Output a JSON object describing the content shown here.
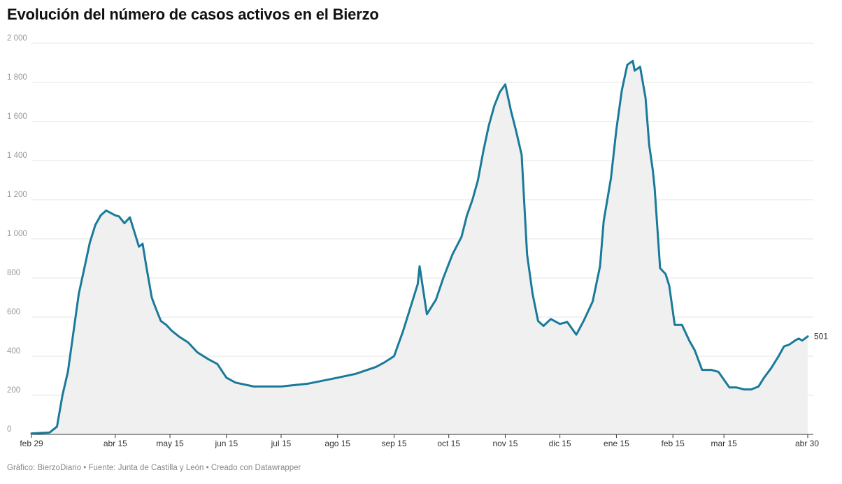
{
  "title": "Evolución del número de casos activos en el Bierzo",
  "footer": {
    "credit": "Gráfico: BierzoDiario",
    "sep1": " • ",
    "source": "Fuente: Junta de Castilla y León",
    "sep2": " • ",
    "tool": "Creado con Datawrapper"
  },
  "colors": {
    "line": "#1a7a99",
    "area": "#f0f0f0",
    "grid": "#e5e5e5",
    "baseline": "#333333"
  },
  "chart_data": {
    "type": "area",
    "title": "Evolución del número de casos activos en el Bierzo",
    "xlabel": "",
    "ylabel": "",
    "ylim": [
      0,
      2000
    ],
    "yticks": [
      0,
      200,
      400,
      600,
      800,
      1000,
      1200,
      1400,
      1600,
      1800,
      2000
    ],
    "ytick_labels": [
      "0",
      "200",
      "400",
      "600",
      "800",
      "1 000",
      "1 200",
      "1 400",
      "1 600",
      "1 800",
      "2 000"
    ],
    "xlim": [
      "2020-02-29",
      "2021-04-30"
    ],
    "xticks": [
      {
        "date": "2020-02-29",
        "label": "feb 29"
      },
      {
        "date": "2020-04-15",
        "label": "abr 15"
      },
      {
        "date": "2020-05-15",
        "label": "may 15"
      },
      {
        "date": "2020-06-15",
        "label": "jun 15"
      },
      {
        "date": "2020-07-15",
        "label": "jul 15"
      },
      {
        "date": "2020-08-15",
        "label": "ago 15"
      },
      {
        "date": "2020-09-15",
        "label": "sep 15"
      },
      {
        "date": "2020-10-15",
        "label": "oct 15"
      },
      {
        "date": "2020-11-15",
        "label": "nov 15"
      },
      {
        "date": "2020-12-15",
        "label": "dic 15"
      },
      {
        "date": "2021-01-15",
        "label": "ene 15"
      },
      {
        "date": "2021-02-15",
        "label": "feb 15"
      },
      {
        "date": "2021-03-15",
        "label": "mar 15"
      },
      {
        "date": "2021-04-30",
        "label": "abr 30"
      }
    ],
    "grid": true,
    "end_label": "501",
    "x": [
      "2020-02-29",
      "2020-03-10",
      "2020-03-14",
      "2020-03-17",
      "2020-03-20",
      "2020-03-23",
      "2020-03-26",
      "2020-03-29",
      "2020-04-01",
      "2020-04-04",
      "2020-04-07",
      "2020-04-10",
      "2020-04-13",
      "2020-04-15",
      "2020-04-17",
      "2020-04-20",
      "2020-04-23",
      "2020-04-26",
      "2020-04-28",
      "2020-04-30",
      "2020-05-02",
      "2020-05-05",
      "2020-05-07",
      "2020-05-10",
      "2020-05-13",
      "2020-05-16",
      "2020-05-20",
      "2020-05-25",
      "2020-05-30",
      "2020-06-05",
      "2020-06-10",
      "2020-06-15",
      "2020-06-20",
      "2020-06-30",
      "2020-07-15",
      "2020-07-30",
      "2020-08-15",
      "2020-08-25",
      "2020-09-05",
      "2020-09-10",
      "2020-09-15",
      "2020-09-20",
      "2020-09-25",
      "2020-09-28",
      "2020-09-29",
      "2020-10-03",
      "2020-10-08",
      "2020-10-12",
      "2020-10-17",
      "2020-10-22",
      "2020-10-25",
      "2020-10-28",
      "2020-10-31",
      "2020-11-03",
      "2020-11-06",
      "2020-11-09",
      "2020-11-12",
      "2020-11-15",
      "2020-11-18",
      "2020-11-21",
      "2020-11-24",
      "2020-11-27",
      "2020-11-30",
      "2020-12-03",
      "2020-12-06",
      "2020-12-10",
      "2020-12-15",
      "2020-12-19",
      "2020-12-24",
      "2020-12-28",
      "2021-01-02",
      "2021-01-06",
      "2021-01-08",
      "2021-01-12",
      "2021-01-15",
      "2021-01-18",
      "2021-01-21",
      "2021-01-24",
      "2021-01-25",
      "2021-01-28",
      "2021-01-31",
      "2021-02-02",
      "2021-02-04",
      "2021-02-05",
      "2021-02-08",
      "2021-02-11",
      "2021-02-13",
      "2021-02-16",
      "2021-02-20",
      "2021-02-24",
      "2021-02-27",
      "2021-03-03",
      "2021-03-08",
      "2021-03-12",
      "2021-03-18",
      "2021-03-22",
      "2021-03-26",
      "2021-03-30",
      "2021-04-03",
      "2021-04-06",
      "2021-04-10",
      "2021-04-14",
      "2021-04-17",
      "2021-04-20",
      "2021-04-23",
      "2021-04-25",
      "2021-04-27",
      "2021-04-30"
    ],
    "series": [
      {
        "values": [
          5,
          10,
          40,
          200,
          320,
          520,
          720,
          850,
          980,
          1070,
          1120,
          1145,
          1130,
          1120,
          1115,
          1080,
          1110,
          1020,
          960,
          975,
          860,
          700,
          650,
          580,
          560,
          530,
          500,
          470,
          420,
          385,
          360,
          290,
          265,
          245,
          245,
          260,
          290,
          310,
          345,
          370,
          400,
          530,
          680,
          770,
          860,
          615,
          690,
          800,
          920,
          1010,
          1120,
          1200,
          1300,
          1450,
          1580,
          1680,
          1750,
          1790,
          1660,
          1550,
          1430,
          920,
          720,
          580,
          555,
          590,
          565,
          575,
          510,
          580,
          680,
          860,
          1090,
          1310,
          1560,
          1760,
          1890,
          1910,
          1860,
          1880,
          1720,
          1480,
          1350,
          1260,
          850,
          820,
          760,
          560,
          560,
          480,
          430,
          330,
          330,
          320,
          240,
          240,
          230,
          230,
          245,
          290,
          340,
          400,
          450,
          460,
          480,
          490,
          480,
          501
        ]
      }
    ]
  }
}
